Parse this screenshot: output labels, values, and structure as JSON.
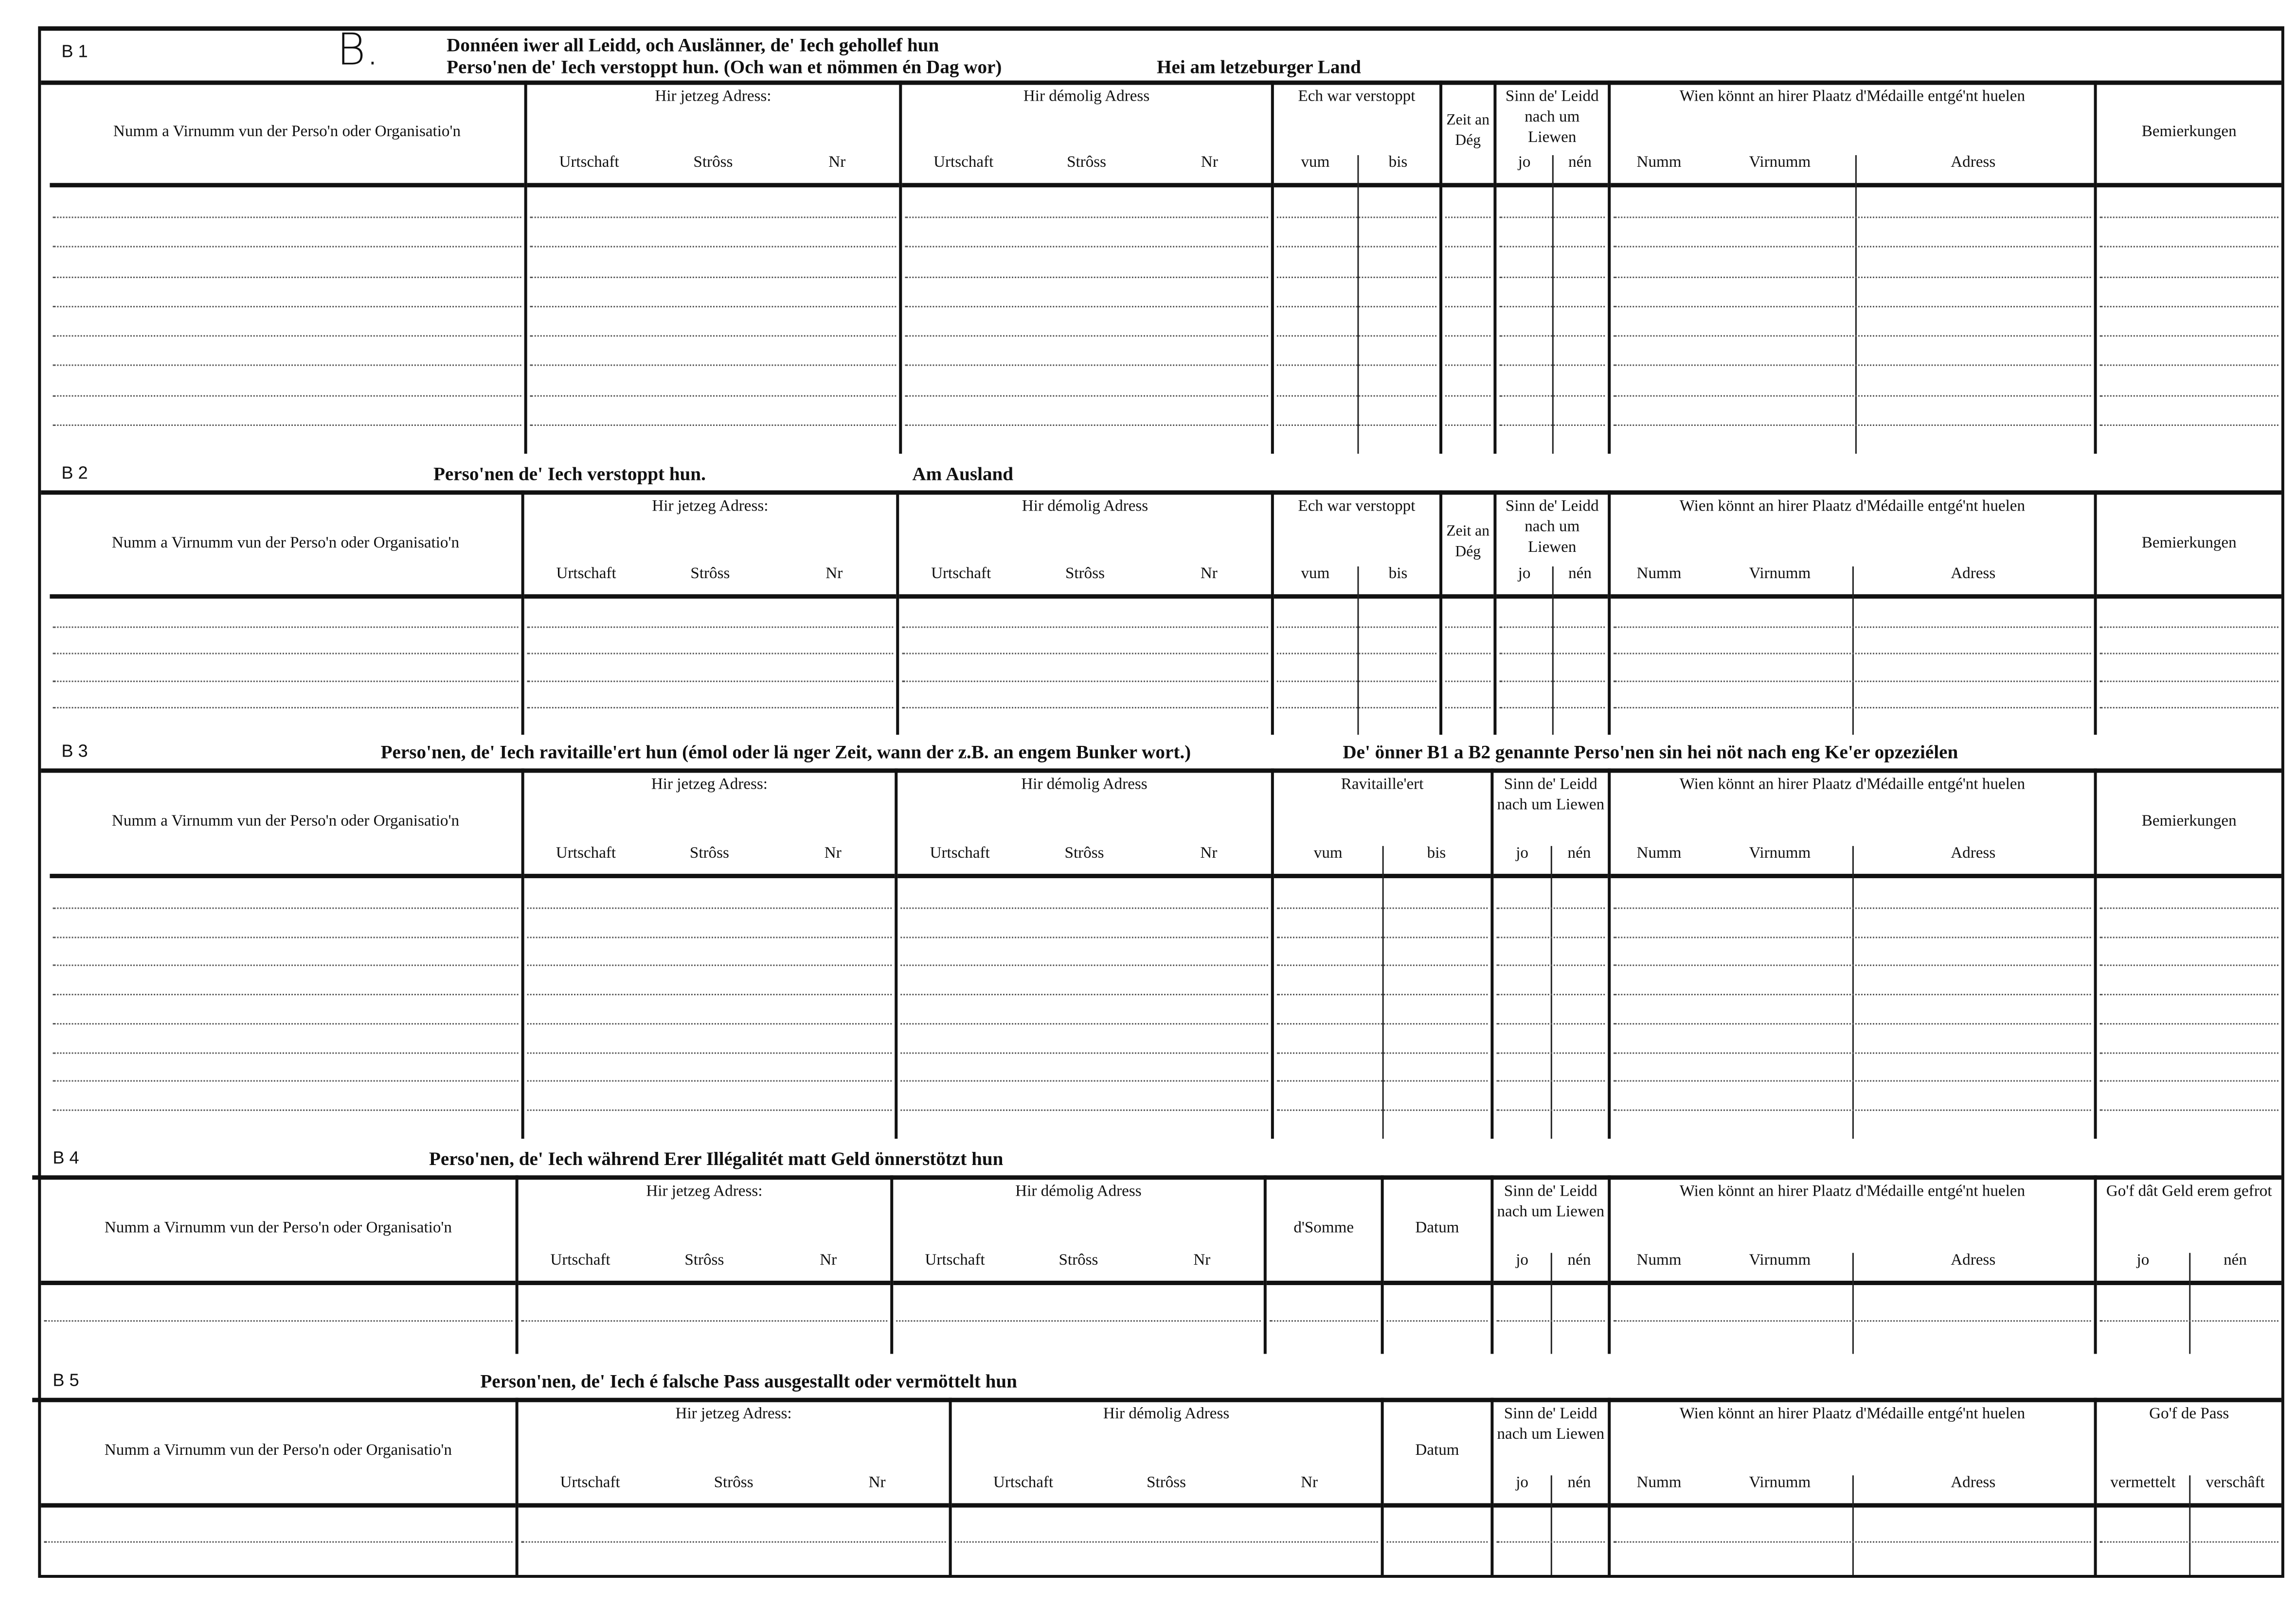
{
  "form_letter": "B.",
  "sections": [
    {
      "id": "B 1",
      "title_lines": [
        "Donnéen iwer all Leidd, och Auslänner, de' Iech gehollef hun",
        "Perso'nen de' Iech verstoppt hun. (Och wan et nömmen én Dag wor)"
      ],
      "title_extra": "Hei am letzeburger Land",
      "columns": [
        {
          "label": "Numm a Virnumm vun der Perso'n oder Organisatio'n"
        },
        {
          "label": "Hir jetzeg Adress:",
          "sub": [
            "Urtschaft",
            "Strôss",
            "Nr"
          ]
        },
        {
          "label": "Hir démolig Adress",
          "sub": [
            "Urtschaft",
            "Strôss",
            "Nr"
          ]
        },
        {
          "label": "Ech war verstoppt",
          "sub": [
            "vum",
            "bis"
          ]
        },
        {
          "label": "Zeit an Dég"
        },
        {
          "label": "Sinn de' Leidd nach um Liewen",
          "sub": [
            "jo",
            "nén"
          ]
        },
        {
          "label": "Wien könnt an hirer Plaatz d'Médaille entgé'nt huelen",
          "sub": [
            "Numm",
            "Virnumm",
            "Adress"
          ]
        },
        {
          "label": "Bemierkungen"
        }
      ]
    },
    {
      "id": "B 2",
      "title_lines": [
        "Perso'nen de' Iech verstoppt hun."
      ],
      "title_extra": "Am Ausland",
      "columns": [
        {
          "label": "Numm a Virnumm vun der Perso'n oder Organisatio'n"
        },
        {
          "label": "Hir jetzeg Adress:",
          "sub": [
            "Urtschaft",
            "Strôss",
            "Nr"
          ]
        },
        {
          "label": "Hir démolig Adress",
          "sub": [
            "Urtschaft",
            "Strôss",
            "Nr"
          ]
        },
        {
          "label": "Ech war verstoppt",
          "sub": [
            "vum",
            "bis"
          ]
        },
        {
          "label": "Zeit an Dég"
        },
        {
          "label": "Sinn de' Leidd nach um Liewen",
          "sub": [
            "jo",
            "nén"
          ]
        },
        {
          "label": "Wien könnt an hirer Plaatz d'Médaille entgé'nt huelen",
          "sub": [
            "Numm",
            "Virnumm",
            "Adress"
          ]
        },
        {
          "label": "Bemierkungen"
        }
      ]
    },
    {
      "id": "B 3",
      "title_lines": [
        "Perso'nen, de' Iech ravitaille'ert hun (émol oder lä nger Zeit, wann der z.B. an engem Bunker wort.)"
      ],
      "title_extra": "De' önner B1 a B2 genannte Perso'nen sin hei nöt nach eng Ke'er opzeziélen",
      "columns": [
        {
          "label": "Numm a Virnumm vun der Perso'n oder Organisatio'n"
        },
        {
          "label": "Hir jetzeg Adress:",
          "sub": [
            "Urtschaft",
            "Strôss",
            "Nr"
          ]
        },
        {
          "label": "Hir démolig Adress",
          "sub": [
            "Urtschaft",
            "Strôss",
            "Nr"
          ]
        },
        {
          "label": "Ravitaille'ert",
          "sub": [
            "vum",
            "bis"
          ]
        },
        {
          "label": "Sinn de' Leidd nach um Liewen",
          "sub": [
            "jo",
            "nén"
          ]
        },
        {
          "label": "Wien könnt an hirer Plaatz d'Médaille entgé'nt huelen",
          "sub": [
            "Numm",
            "Virnumm",
            "Adress"
          ]
        },
        {
          "label": "Bemierkungen"
        }
      ]
    },
    {
      "id": "B 4",
      "title_lines": [
        "Perso'nen, de' Iech während Erer Illégalitét matt Geld önnerstötzt hun"
      ],
      "title_extra": "",
      "columns": [
        {
          "label": "Numm a Virnumm vun der Perso'n oder Organisatio'n"
        },
        {
          "label": "Hir jetzeg Adress:",
          "sub": [
            "Urtschaft",
            "Strôss",
            "Nr"
          ]
        },
        {
          "label": "Hir démolig Adress",
          "sub": [
            "Urtschaft",
            "Strôss",
            "Nr"
          ]
        },
        {
          "label": "d'Somme"
        },
        {
          "label": "Datum"
        },
        {
          "label": "Sinn de' Leidd nach um Liewen",
          "sub": [
            "jo",
            "nén"
          ]
        },
        {
          "label": "Wien könnt an hirer Plaatz d'Médaille entgé'nt huelen",
          "sub": [
            "Numm",
            "Virnumm",
            "Adress"
          ]
        },
        {
          "label": "Go'f dât Geld erem gefrot",
          "sub": [
            "jo",
            "nén"
          ]
        }
      ]
    },
    {
      "id": "B 5",
      "title_lines": [
        "Person'nen, de' Iech é falsche Pass ausgestallt oder vermöttelt hun"
      ],
      "title_extra": "",
      "columns": [
        {
          "label": "Numm a Virnumm vun der Perso'n oder Organisatio'n"
        },
        {
          "label": "Hir jetzeg Adress:",
          "sub": [
            "Urtschaft",
            "Strôss",
            "Nr"
          ]
        },
        {
          "label": "Hir démolig Adress",
          "sub": [
            "Urtschaft",
            "Strôss",
            "Nr"
          ]
        },
        {
          "label": "Datum"
        },
        {
          "label": "Sinn de' Leidd nach um Liewen",
          "sub": [
            "jo",
            "nén"
          ]
        },
        {
          "label": "Wien könnt an hirer Plaatz d'Médaille entgé'nt huelen",
          "sub": [
            "Numm",
            "Virnumm",
            "Adress"
          ]
        },
        {
          "label": "Go'f de Pass",
          "sub": [
            "vermettelt",
            "verschâft"
          ]
        }
      ]
    }
  ]
}
